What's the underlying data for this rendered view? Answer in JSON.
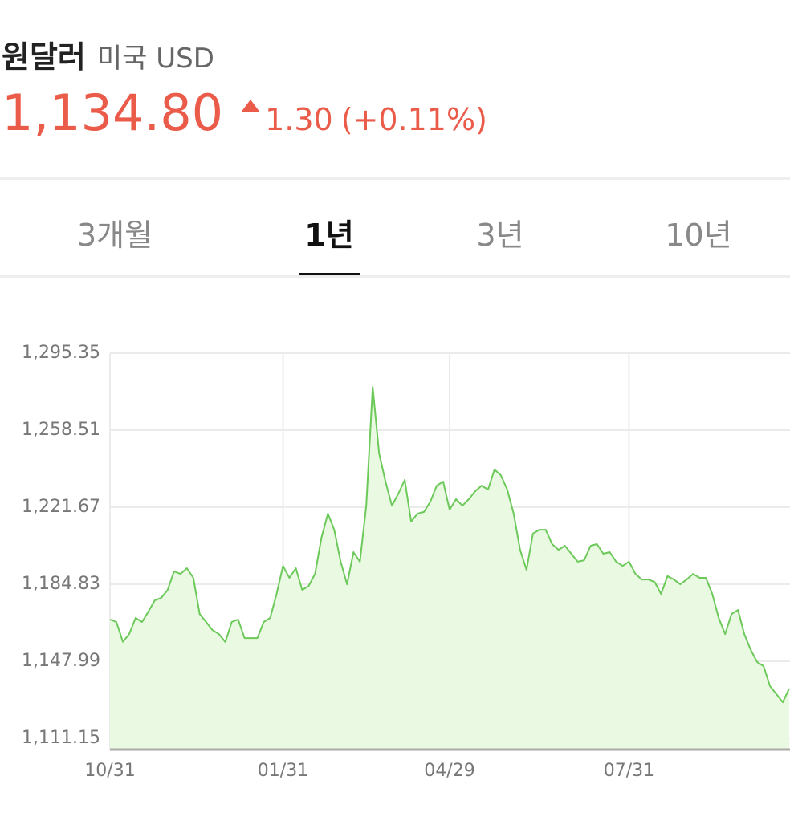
{
  "header": {
    "title": "원달러",
    "subtitle": "미국 USD"
  },
  "quote": {
    "price": "1,134.80",
    "change": "1.30",
    "change_percent": "(+0.11%)"
  },
  "tabs": {
    "items": [
      "3개월",
      "1년",
      "3년",
      "10년"
    ],
    "selected": 1
  },
  "chart_data": {
    "type": "area",
    "color": "#6cc95a",
    "fill": "#e9f9e2",
    "values": [
      1168.0,
      1166.8,
      1157.3,
      1161.0,
      1168.7,
      1166.8,
      1171.8,
      1177.2,
      1178.3,
      1182.1,
      1191.0,
      1189.8,
      1192.5,
      1187.9,
      1170.6,
      1166.8,
      1162.9,
      1161.0,
      1157.2,
      1166.8,
      1168.0,
      1159.1,
      1159.1,
      1159.1,
      1166.8,
      1168.7,
      1180.2,
      1193.6,
      1187.9,
      1192.5,
      1182.1,
      1184.0,
      1189.8,
      1207.1,
      1218.6,
      1210.9,
      1195.6,
      1184.8,
      1200.2,
      1195.6,
      1222.4,
      1279.2,
      1247.4,
      1233.9,
      1222.4,
      1228.2,
      1234.7,
      1214.8,
      1218.6,
      1219.4,
      1224.4,
      1232.0,
      1233.9,
      1220.5,
      1225.5,
      1222.4,
      1225.5,
      1229.3,
      1232.0,
      1230.1,
      1239.7,
      1237.0,
      1230.1,
      1218.6,
      1201.3,
      1191.7,
      1209.0,
      1210.9,
      1210.9,
      1204.0,
      1201.3,
      1203.2,
      1199.4,
      1195.6,
      1196.3,
      1203.2,
      1204.0,
      1199.4,
      1200.2,
      1195.6,
      1193.6,
      1195.6,
      1189.8,
      1187.1,
      1187.1,
      1185.9,
      1180.2,
      1188.7,
      1187.1,
      1184.8,
      1187.1,
      1189.8,
      1187.9,
      1187.9,
      1180.2,
      1168.7,
      1161.0,
      1170.6,
      1172.5,
      1161.0,
      1153.4,
      1147.6,
      1145.7,
      1136.1,
      1132.3,
      1128.4,
      1134.9
    ],
    "xlim": [
      0,
      106
    ],
    "xticks": [
      {
        "value": 0,
        "label": "10/31"
      },
      {
        "value": 27,
        "label": "01/31"
      },
      {
        "value": 53,
        "label": "04/29"
      },
      {
        "value": 81,
        "label": "07/31"
      }
    ],
    "ylim": [
      1105.78,
      1295.35
    ],
    "yticks": [
      {
        "value": 1111.15,
        "label": "1,111.15"
      },
      {
        "value": 1147.99,
        "label": "1,147.99"
      },
      {
        "value": 1184.83,
        "label": "1,184.83"
      },
      {
        "value": 1221.67,
        "label": "1,221.67"
      },
      {
        "value": 1258.51,
        "label": "1,258.51"
      },
      {
        "value": 1295.35,
        "label": "1,295.35"
      }
    ],
    "grid": true
  }
}
